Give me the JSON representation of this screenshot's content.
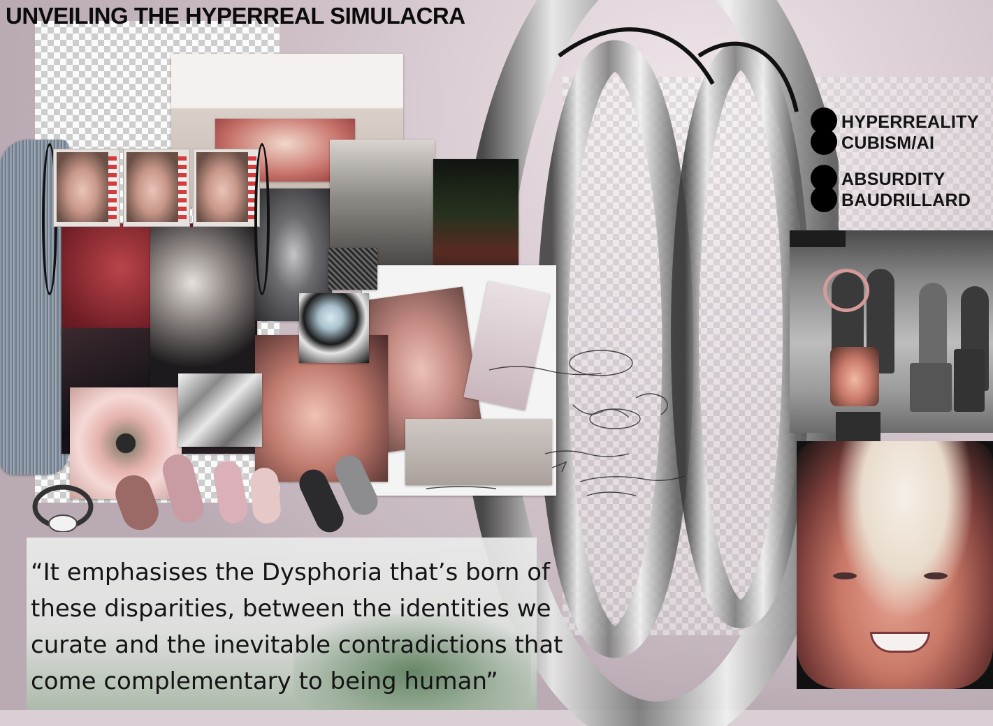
{
  "title": "UNVEILING THE HYPERREAL SIMULACRA",
  "keywords": [
    {
      "lines": [
        "HYPERREALITY",
        "CUBISM/AI"
      ]
    },
    {
      "lines": [
        "ABSURDITY",
        "BAUDRILLARD"
      ]
    }
  ],
  "quote": "“It emphasises the Dysphoria that’s born of\nthese disparities, between the identities we\ncurate and the inevitable contradictions that\ncome complementary to being human”",
  "colors": {
    "title": "#0b0b0b",
    "bullet": "#000000",
    "highlight_circle": "#d69a9a",
    "arrow": "#2d2d2d"
  },
  "icons": {
    "bullet": "filled-circle",
    "arrow": "arrow-down-icon"
  }
}
